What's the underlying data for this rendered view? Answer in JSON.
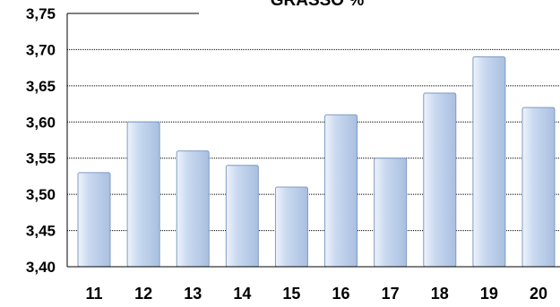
{
  "chart_data": {
    "type": "bar",
    "title": "GRASSO %",
    "categories": [
      "11",
      "12",
      "13",
      "14",
      "15",
      "16",
      "17",
      "18",
      "19",
      "20"
    ],
    "values": [
      3.53,
      3.6,
      3.56,
      3.54,
      3.51,
      3.61,
      3.55,
      3.64,
      3.69,
      3.62
    ],
    "xlabel": "",
    "ylabel": "",
    "ylim": [
      3.4,
      3.75
    ],
    "yticks": [
      "3,40",
      "3,45",
      "3,50",
      "3,55",
      "3,60",
      "3,65",
      "3,70",
      "3,75"
    ],
    "grid": true,
    "legend": "none",
    "colors": {
      "bar_fill_light": "#eef3fb",
      "bar_fill_mid": "#c9d9f0",
      "bar_fill_dark": "#a9bfe0",
      "bar_stroke": "#7f9bc4",
      "gridline": "#000000",
      "axis": "#000000"
    }
  }
}
